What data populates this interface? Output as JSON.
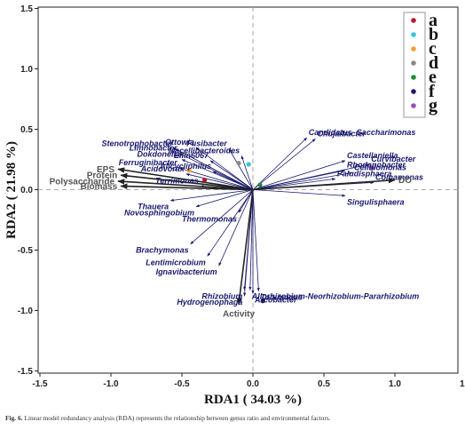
{
  "chart_data": {
    "type": "scatter",
    "title": "",
    "xlabel": "RDA1 ( 34.03 %)",
    "ylabel": "RDA2 ( 21.98 %)",
    "xlim": [
      -1.5,
      1.5
    ],
    "ylim": [
      -1.5,
      1.5
    ],
    "xticks": [
      "-1.5",
      "-1.0",
      "-0.5",
      "0.0",
      "0.5",
      "1.0",
      "1.5"
    ],
    "yticks": [
      "1.5",
      "1.0",
      "0.5",
      "0.0",
      "-0.5",
      "-1.0",
      "-1.5"
    ],
    "grid": false,
    "legend_position": "top-right",
    "legend": [
      {
        "label": "a",
        "color": "#b01c2e"
      },
      {
        "label": "b",
        "color": "#35c4d8"
      },
      {
        "label": "c",
        "color": "#f0a030"
      },
      {
        "label": "d",
        "color": "#8a8a8a"
      },
      {
        "label": "e",
        "color": "#1f8a3a"
      },
      {
        "label": "f",
        "color": "#1a1a6e"
      },
      {
        "label": "g",
        "color": "#9b4db8"
      }
    ],
    "samples": [
      {
        "group": "a",
        "x": -0.34,
        "y": 0.08
      },
      {
        "group": "b",
        "x": -0.03,
        "y": 0.21
      },
      {
        "group": "c",
        "x": -0.45,
        "y": 0.16
      },
      {
        "group": "d",
        "x": -0.1,
        "y": 0.22
      },
      {
        "group": "e",
        "x": 0.05,
        "y": 0.04
      },
      {
        "group": "f",
        "x": 0.07,
        "y": -0.92
      },
      {
        "group": "g",
        "x": 0.84,
        "y": 0.18
      }
    ],
    "environmental_factors": [
      {
        "name": "EPS",
        "x": -0.95,
        "y": 0.17
      },
      {
        "name": "Protein",
        "x": -0.93,
        "y": 0.12
      },
      {
        "name": "Polysaccharide",
        "x": -0.95,
        "y": 0.07
      },
      {
        "name": "Biomass",
        "x": -0.93,
        "y": 0.03
      },
      {
        "name": "DO",
        "x": 1.0,
        "y": 0.08
      },
      {
        "name": "Activity",
        "x": -0.1,
        "y": -0.95
      }
    ],
    "genera": [
      {
        "name": "Candidatus_Saccharimonas",
        "x": 0.38,
        "y": 0.43
      },
      {
        "name": "Chujaibacter",
        "x": 0.44,
        "y": 0.42
      },
      {
        "name": "Stenotrophobacter",
        "x": -0.55,
        "y": 0.34
      },
      {
        "name": "Ottowia",
        "x": -0.4,
        "y": 0.35
      },
      {
        "name": "Fusibacter",
        "x": -0.17,
        "y": 0.34
      },
      {
        "name": "Macellibacteroides",
        "x": -0.08,
        "y": 0.28
      },
      {
        "name": "Limnobacter",
        "x": -0.52,
        "y": 0.3
      },
      {
        "name": "Dokdonella",
        "x": -0.5,
        "y": 0.25
      },
      {
        "name": "Ellin6067",
        "x": -0.3,
        "y": 0.24
      },
      {
        "name": "Castellaniella",
        "x": 0.65,
        "y": 0.24
      },
      {
        "name": "Curvibacter",
        "x": 0.82,
        "y": 0.21
      },
      {
        "name": "Ferruginibacter",
        "x": -0.52,
        "y": 0.18
      },
      {
        "name": "Acidovorax",
        "x": -0.47,
        "y": 0.13
      },
      {
        "name": "Alicycliphilus",
        "x": -0.28,
        "y": 0.15
      },
      {
        "name": "Rhodanobacter",
        "x": 0.65,
        "y": 0.16
      },
      {
        "name": "Cellulomonas",
        "x": 0.7,
        "y": 0.14
      },
      {
        "name": "Paludisphaera",
        "x": 0.58,
        "y": 0.09
      },
      {
        "name": "Comamonas",
        "x": 0.85,
        "y": 0.06
      },
      {
        "name": "Terrimonas",
        "x": -0.37,
        "y": 0.03
      },
      {
        "name": "Singulisphaera",
        "x": 0.65,
        "y": -0.05
      },
      {
        "name": "Thauera",
        "x": -0.58,
        "y": -0.09
      },
      {
        "name": "Novosphingobium",
        "x": -0.4,
        "y": -0.14
      },
      {
        "name": "Thermomonas",
        "x": -0.1,
        "y": -0.19
      },
      {
        "name": "Brachymonas",
        "x": -0.44,
        "y": -0.45
      },
      {
        "name": "Lentimicrobium",
        "x": -0.32,
        "y": -0.55
      },
      {
        "name": "Ignavibacterium",
        "x": -0.24,
        "y": -0.63
      },
      {
        "name": "Allorhizobium-Neorhizobium-Pararhizobium",
        "x": -0.02,
        "y": -0.83
      },
      {
        "name": "Rhizobium",
        "x": -0.06,
        "y": -0.83
      },
      {
        "name": "Tolumonas",
        "x": 0.04,
        "y": -0.84
      },
      {
        "name": "Arcobacter",
        "x": 0.0,
        "y": -0.86
      },
      {
        "name": "Hydrogenophaga",
        "x": -0.06,
        "y": -0.88
      }
    ]
  },
  "caption": {
    "label": "Fig. 6.",
    "text": "Linear model redundancy analysis (RDA) represents the relationship between genus ratio and environmental factors."
  }
}
